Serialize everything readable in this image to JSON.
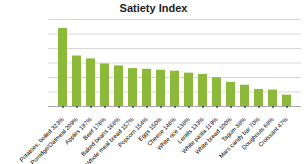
{
  "chart_data": {
    "type": "bar",
    "title": "Satiety Index",
    "categories": [
      "Potatoes, boiled 323%",
      "Porridge/Oatmeal 209%",
      "Apples 197%",
      "Beef 176%",
      "Baked beans 168%",
      "Whole meal bread 157%",
      "Popcorn 154%",
      "Eggs 150%",
      "Cheese 146%",
      "White rice 138%",
      "Lentils 133%",
      "White pasta 119%",
      "White bread 100%",
      "Tagum 88%",
      "Mars candy bar 70%",
      "Doughnuts 68%",
      "Croissant 47%"
    ],
    "values": [
      323,
      209,
      197,
      176,
      168,
      157,
      154,
      150,
      146,
      138,
      133,
      119,
      100,
      88,
      70,
      68,
      47
    ],
    "color": "#8db93a",
    "ylim": [
      0,
      360
    ],
    "yticks": [
      0,
      60,
      120,
      180,
      240,
      300,
      360
    ],
    "grid": true,
    "tick_labels": "x"
  }
}
